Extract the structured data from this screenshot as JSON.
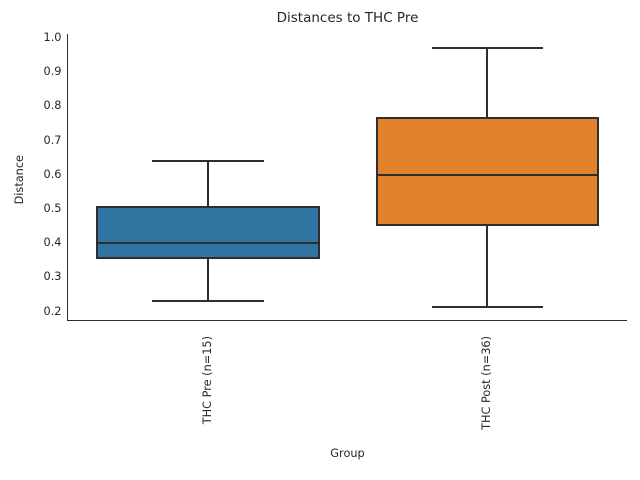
{
  "figure": {
    "title": "Distances to THC Pre",
    "xlabel": "Group",
    "ylabel": "Distance"
  },
  "chart_data": {
    "type": "boxplot",
    "title": "Distances to THC Pre",
    "xlabel": "Group",
    "ylabel": "Distance",
    "categories": [
      "THC Pre (n=15)",
      "THC Post (n=36)"
    ],
    "series": [
      {
        "name": "THC Pre (n=15)",
        "n": 15,
        "whisker_low": 0.23,
        "q1": 0.355,
        "median": 0.4,
        "q3": 0.51,
        "whisker_high": 0.64,
        "color": "#3274A1"
      },
      {
        "name": "THC Post (n=36)",
        "n": 36,
        "whisker_low": 0.215,
        "q1": 0.45,
        "median": 0.6,
        "q3": 0.77,
        "whisker_high": 0.97,
        "color": "#E1812C"
      }
    ],
    "ylim": [
      0.177,
      1.013
    ],
    "yticks": [
      0.2,
      0.3,
      0.4,
      0.5,
      0.6,
      0.7,
      0.8,
      0.9,
      1.0
    ],
    "ytick_decimals": 1,
    "xtick_rotation": 90,
    "grid": false,
    "legend_visible": false,
    "line_color": "#2e2e2e",
    "text_color": "#262626",
    "background": "#ffffff"
  }
}
